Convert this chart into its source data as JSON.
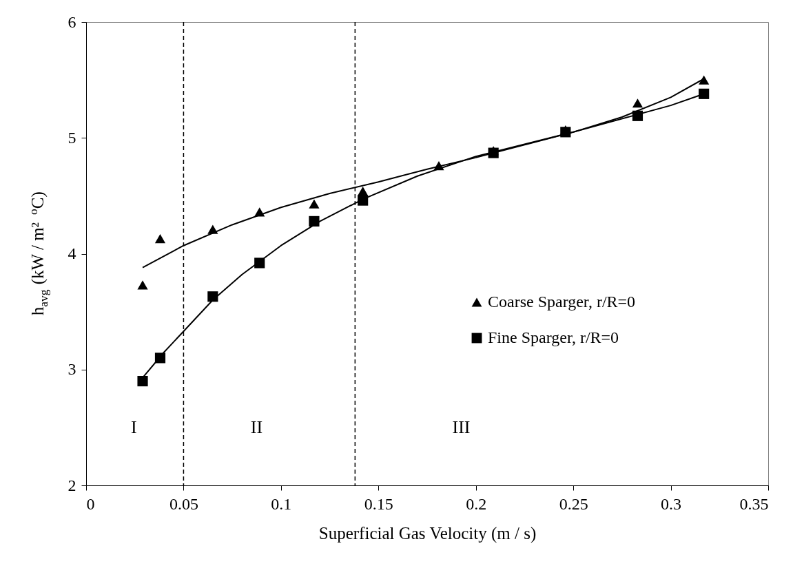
{
  "chart_data": {
    "type": "scatter",
    "xlabel": "Superficial Gas Velocity (m / s)",
    "ylabel": "h$_{avg}$ (kW / m² $^{o}$C)",
    "xlim": [
      0,
      0.35
    ],
    "xticks": [
      0,
      0.05,
      0.1,
      0.15,
      0.2,
      0.25,
      0.3,
      0.35
    ],
    "ylim": [
      2,
      6
    ],
    "yticks": [
      2,
      3,
      4,
      5,
      6
    ],
    "grid": false,
    "legend": "right",
    "series": [
      {
        "name": "Coarse Sparger, r/R=0",
        "marker": "triangle",
        "color": "#000000",
        "x": [
          0.029,
          0.038,
          0.065,
          0.089,
          0.117,
          0.142,
          0.181,
          0.209,
          0.246,
          0.283,
          0.317
        ],
        "values": [
          3.73,
          4.13,
          4.21,
          4.36,
          4.43,
          4.54,
          4.76,
          4.89,
          5.07,
          5.3,
          5.5
        ]
      },
      {
        "name": "Fine Sparger, r/R=0",
        "marker": "square",
        "color": "#000000",
        "x": [
          0.029,
          0.038,
          0.065,
          0.089,
          0.117,
          0.142,
          0.209,
          0.246,
          0.283,
          0.317
        ],
        "values": [
          2.9,
          3.1,
          3.63,
          3.92,
          4.28,
          4.46,
          4.87,
          5.05,
          5.19,
          5.38
        ]
      },
      {
        "type": "line",
        "marker": "none",
        "line_style": "solid",
        "color": "#000000",
        "x": [
          0.029,
          0.05,
          0.075,
          0.1,
          0.125,
          0.15,
          0.175,
          0.2,
          0.225,
          0.25,
          0.275,
          0.3,
          0.317
        ],
        "values": [
          3.88,
          4.07,
          4.25,
          4.4,
          4.52,
          4.62,
          4.73,
          4.83,
          4.94,
          5.05,
          5.18,
          5.35,
          5.51
        ]
      },
      {
        "type": "line",
        "marker": "none",
        "line_style": "solid",
        "color": "#000000",
        "x": [
          0.029,
          0.04,
          0.05,
          0.065,
          0.08,
          0.1,
          0.12,
          0.142,
          0.17,
          0.2,
          0.25,
          0.3,
          0.317
        ],
        "values": [
          2.93,
          3.15,
          3.33,
          3.6,
          3.82,
          4.07,
          4.28,
          4.47,
          4.67,
          4.84,
          5.05,
          5.28,
          5.38
        ]
      }
    ],
    "ref_lines": [
      {
        "axis": "x",
        "value": 0.05,
        "line_style": "dashed",
        "color": "#000000"
      },
      {
        "axis": "x",
        "value": 0.138,
        "line_style": "dashed",
        "color": "#000000"
      }
    ],
    "annotations": [
      "I",
      "II",
      "III"
    ]
  }
}
